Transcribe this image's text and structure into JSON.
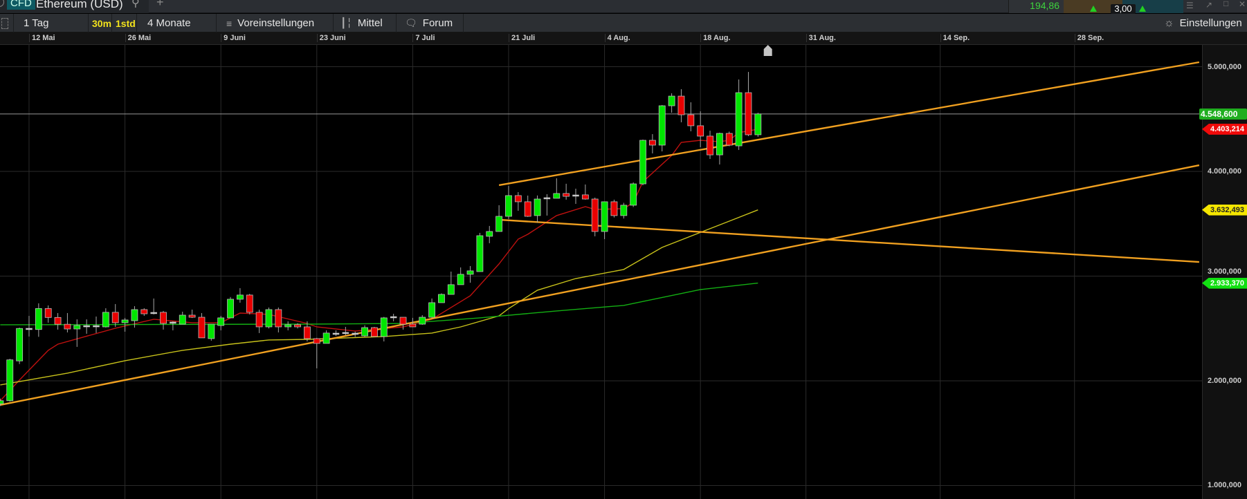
{
  "topbar": {
    "badge": "CFD",
    "title": "Ethereum (USD)",
    "search_icon": "search-icon",
    "add_tab": "+",
    "quote_value": "194,86",
    "spread": "3,00"
  },
  "toolbar": {
    "interval": "1 Tag",
    "intraday_30m": "30m",
    "intraday_1h": "1std",
    "range": "4 Monate",
    "presets": "Voreinstellungen",
    "indicators": "Mittel",
    "forum": "Forum",
    "settings": "Einstellungen"
  },
  "colors": {
    "up": "#00e600",
    "down": "#e80000",
    "doji": "#c8c8c8",
    "ma_short": "#c0110f",
    "ma_mid": "#c8c21a",
    "ma_long": "#13b013",
    "trendline": "#f0a020",
    "last_price": "#1fae1f"
  },
  "chart_data": {
    "type": "candlestick",
    "ylim": [
      871,
      5208
    ],
    "y_ticks": [
      {
        "v": 5000,
        "label": "5.000,000"
      },
      {
        "v": 4000,
        "label": "4.000,000"
      },
      {
        "v": 3000,
        "label": "3.000,000"
      },
      {
        "v": 2000,
        "label": "2.000,000"
      },
      {
        "v": 1000,
        "label": "1.000,000"
      }
    ],
    "x_ticks": [
      {
        "d": "2025-05-12",
        "label": "12 Mai"
      },
      {
        "d": "2025-05-26",
        "label": "26 Mai"
      },
      {
        "d": "2025-06-09",
        "label": "9 Juni"
      },
      {
        "d": "2025-06-23",
        "label": "23 Juni"
      },
      {
        "d": "2025-07-07",
        "label": "7 Juli"
      },
      {
        "d": "2025-07-21",
        "label": "21 Juli"
      },
      {
        "d": "2025-08-04",
        "label": "4 Aug."
      },
      {
        "d": "2025-08-18",
        "label": "18 Aug."
      },
      {
        "d": "2025-08-31",
        "label": "31 Aug."
      },
      {
        "d": "2025-09-14",
        "label": "14 Sep."
      },
      {
        "d": "2025-09-28",
        "label": "28 Sep."
      }
    ],
    "candles": [
      [
        "2025-05-07",
        1780,
        1830,
        1760,
        1810
      ],
      [
        "2025-05-08",
        1810,
        2210,
        1800,
        2200
      ],
      [
        "2025-05-09",
        2190,
        2508,
        2160,
        2500
      ],
      [
        "2025-05-12",
        2500,
        2620,
        2423,
        2495
      ],
      [
        "2025-05-13",
        2490,
        2740,
        2420,
        2690
      ],
      [
        "2025-05-14",
        2690,
        2720,
        2555,
        2605
      ],
      [
        "2025-05-15",
        2605,
        2647,
        2489,
        2540
      ],
      [
        "2025-05-16",
        2540,
        2647,
        2462,
        2495
      ],
      [
        "2025-05-19",
        2495,
        2587,
        2324,
        2528
      ],
      [
        "2025-05-20",
        2521,
        2587,
        2449,
        2521
      ],
      [
        "2025-05-21",
        2521,
        2614,
        2456,
        2521
      ],
      [
        "2025-05-22",
        2515,
        2693,
        2509,
        2654
      ],
      [
        "2025-05-23",
        2654,
        2733,
        2515,
        2555
      ],
      [
        "2025-05-26",
        2555,
        2600,
        2469,
        2581
      ],
      [
        "2025-05-27",
        2574,
        2713,
        2508,
        2680
      ],
      [
        "2025-05-28",
        2680,
        2693,
        2620,
        2640
      ],
      [
        "2025-05-29",
        2647,
        2786,
        2634,
        2647
      ],
      [
        "2025-05-30",
        2654,
        2667,
        2489,
        2548
      ],
      [
        "2025-06-02",
        2555,
        2568,
        2482,
        2555
      ],
      [
        "2025-06-03",
        2541,
        2660,
        2541,
        2627
      ],
      [
        "2025-06-04",
        2627,
        2680,
        2600,
        2607
      ],
      [
        "2025-06-05",
        2607,
        2647,
        2409,
        2410
      ],
      [
        "2025-06-06",
        2403,
        2541,
        2383,
        2541
      ],
      [
        "2025-06-09",
        2528,
        2620,
        2482,
        2601
      ],
      [
        "2025-06-10",
        2601,
        2800,
        2601,
        2779
      ],
      [
        "2025-06-11",
        2779,
        2885,
        2746,
        2819
      ],
      [
        "2025-06-12",
        2819,
        2830,
        2634,
        2654
      ],
      [
        "2025-06-13",
        2654,
        2680,
        2456,
        2515
      ],
      [
        "2025-06-16",
        2515,
        2700,
        2500,
        2680
      ],
      [
        "2025-06-17",
        2680,
        2700,
        2462,
        2515
      ],
      [
        "2025-06-18",
        2515,
        2568,
        2482,
        2535
      ],
      [
        "2025-06-19",
        2535,
        2550,
        2500,
        2515
      ],
      [
        "2025-06-20",
        2515,
        2568,
        2376,
        2403
      ],
      [
        "2025-06-23",
        2403,
        2410,
        2119,
        2357
      ],
      [
        "2025-06-24",
        2357,
        2482,
        2357,
        2456
      ],
      [
        "2025-06-25",
        2449,
        2482,
        2429,
        2449
      ],
      [
        "2025-06-26",
        2456,
        2515,
        2436,
        2456
      ],
      [
        "2025-06-27",
        2449,
        2470,
        2420,
        2449
      ],
      [
        "2025-06-30",
        2429,
        2530,
        2420,
        2508
      ],
      [
        "2025-07-01",
        2508,
        2515,
        2423,
        2423
      ],
      [
        "2025-07-02",
        2423,
        2610,
        2376,
        2601
      ],
      [
        "2025-07-03",
        2607,
        2640,
        2568,
        2607
      ],
      [
        "2025-07-04",
        2607,
        2607,
        2489,
        2541
      ],
      [
        "2025-07-07",
        2541,
        2601,
        2515,
        2515
      ],
      [
        "2025-07-08",
        2541,
        2627,
        2535,
        2607
      ],
      [
        "2025-07-09",
        2607,
        2786,
        2600,
        2746
      ],
      [
        "2025-07-10",
        2746,
        2835,
        2746,
        2825
      ],
      [
        "2025-07-11",
        2825,
        3043,
        2825,
        2918
      ],
      [
        "2025-07-14",
        2918,
        3083,
        2918,
        3017
      ],
      [
        "2025-07-15",
        3017,
        3096,
        2937,
        3050
      ],
      [
        "2025-07-16",
        3043,
        3413,
        3043,
        3386
      ],
      [
        "2025-07-17",
        3380,
        3479,
        3314,
        3426
      ],
      [
        "2025-07-18",
        3426,
        3677,
        3426,
        3571
      ],
      [
        "2025-07-21",
        3571,
        3861,
        3545,
        3769
      ],
      [
        "2025-07-22",
        3769,
        3802,
        3624,
        3710
      ],
      [
        "2025-07-23",
        3710,
        3769,
        3565,
        3571
      ],
      [
        "2025-07-24",
        3578,
        3770,
        3512,
        3736
      ],
      [
        "2025-07-25",
        3743,
        3782,
        3578,
        3743
      ],
      [
        "2025-07-28",
        3743,
        3934,
        3743,
        3789
      ],
      [
        "2025-07-29",
        3789,
        3882,
        3730,
        3762
      ],
      [
        "2025-07-30",
        3769,
        3835,
        3690,
        3769
      ],
      [
        "2025-07-31",
        3776,
        3875,
        3730,
        3736
      ],
      [
        "2025-08-01",
        3736,
        3750,
        3380,
        3426
      ],
      [
        "2025-08-04",
        3426,
        3710,
        3353,
        3710
      ],
      [
        "2025-08-05",
        3710,
        3730,
        3560,
        3578
      ],
      [
        "2025-08-06",
        3578,
        3700,
        3550,
        3677
      ],
      [
        "2025-08-07",
        3677,
        3895,
        3660,
        3881
      ],
      [
        "2025-08-08",
        3881,
        4304,
        3868,
        4297
      ],
      [
        "2025-08-11",
        4297,
        4356,
        4172,
        4251
      ],
      [
        "2025-08-12",
        4251,
        4634,
        4191,
        4627
      ],
      [
        "2025-08-13",
        4627,
        4746,
        4561,
        4719
      ],
      [
        "2025-08-14",
        4719,
        4785,
        4469,
        4541
      ],
      [
        "2025-08-15",
        4541,
        4660,
        4383,
        4436
      ],
      [
        "2025-08-18",
        4436,
        4574,
        4231,
        4337
      ],
      [
        "2025-08-19",
        4337,
        4389,
        4119,
        4158
      ],
      [
        "2025-08-20",
        4158,
        4370,
        4066,
        4363
      ],
      [
        "2025-08-21",
        4363,
        4380,
        4240,
        4251
      ],
      [
        "2025-08-22",
        4244,
        4878,
        4205,
        4752
      ],
      [
        "2025-08-25",
        4752,
        4950,
        4337,
        4350
      ],
      [
        "2025-08-26",
        4350,
        4560,
        4330,
        4548.6
      ]
    ],
    "moving_averages": [
      {
        "color_key": "ma_short",
        "last_label": "4.403,214",
        "points": [
          [
            "2025-05-07",
            1809
          ],
          [
            "2025-05-09",
            2007
          ],
          [
            "2025-05-14",
            2291
          ],
          [
            "2025-05-15",
            2350
          ],
          [
            "2025-05-23",
            2502
          ],
          [
            "2025-05-29",
            2588
          ],
          [
            "2025-06-04",
            2555
          ],
          [
            "2025-06-09",
            2555
          ],
          [
            "2025-06-11",
            2647
          ],
          [
            "2025-06-16",
            2634
          ],
          [
            "2025-06-20",
            2548
          ],
          [
            "2025-06-23",
            2515
          ],
          [
            "2025-06-27",
            2475
          ],
          [
            "2025-07-04",
            2515
          ],
          [
            "2025-07-09",
            2588
          ],
          [
            "2025-07-15",
            2812
          ],
          [
            "2025-07-18",
            3116
          ],
          [
            "2025-07-22",
            3353
          ],
          [
            "2025-07-23",
            3399
          ],
          [
            "2025-07-28",
            3578
          ],
          [
            "2025-07-31",
            3663
          ],
          [
            "2025-08-01",
            3637
          ],
          [
            "2025-08-06",
            3644
          ],
          [
            "2025-08-07",
            3703
          ],
          [
            "2025-08-08",
            3901
          ],
          [
            "2025-08-13",
            4152
          ],
          [
            "2025-08-14",
            4277
          ],
          [
            "2025-08-18",
            4297
          ],
          [
            "2025-08-20",
            4284
          ],
          [
            "2025-08-21",
            4297
          ],
          [
            "2025-08-22",
            4370
          ],
          [
            "2025-08-26",
            4403.214
          ]
        ]
      },
      {
        "color_key": "ma_mid",
        "last_label": "3.632,493",
        "points": [
          [
            "2025-05-07",
            1961
          ],
          [
            "2025-05-16",
            2073
          ],
          [
            "2025-05-26",
            2192
          ],
          [
            "2025-06-03",
            2291
          ],
          [
            "2025-06-10",
            2350
          ],
          [
            "2025-06-16",
            2390
          ],
          [
            "2025-06-20",
            2396
          ],
          [
            "2025-07-02",
            2423
          ],
          [
            "2025-07-09",
            2456
          ],
          [
            "2025-07-14",
            2515
          ],
          [
            "2025-07-18",
            2620
          ],
          [
            "2025-07-21",
            2690
          ],
          [
            "2025-07-24",
            2865
          ],
          [
            "2025-07-30",
            2977
          ],
          [
            "2025-08-06",
            3063
          ],
          [
            "2025-08-12",
            3274
          ],
          [
            "2025-08-21",
            3525
          ],
          [
            "2025-08-26",
            3632.493
          ]
        ]
      },
      {
        "color_key": "ma_long",
        "last_label": "2.933,370",
        "points": [
          [
            "2025-05-07",
            2535
          ],
          [
            "2025-06-20",
            2541
          ],
          [
            "2025-07-04",
            2548
          ],
          [
            "2025-07-16",
            2601
          ],
          [
            "2025-07-28",
            2667
          ],
          [
            "2025-08-06",
            2720
          ],
          [
            "2025-08-18",
            2871
          ],
          [
            "2025-08-26",
            2933.37
          ]
        ]
      }
    ],
    "trendlines": [
      {
        "from": [
          "2025-05-07",
          1769
        ],
        "to": [
          "2025-10-11",
          4059
        ]
      },
      {
        "from": [
          "2025-07-18",
          3868
        ],
        "to": [
          "2025-10-11",
          5043
        ]
      },
      {
        "from": [
          "2025-07-18",
          3538
        ],
        "to": [
          "2025-10-11",
          3135
        ]
      }
    ],
    "last_price": 4548.6,
    "last_price_label": "4.548,600"
  }
}
